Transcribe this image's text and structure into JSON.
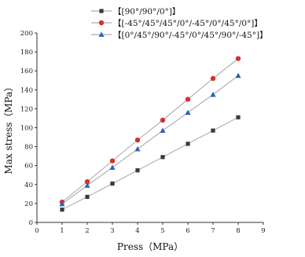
{
  "chart_data": {
    "type": "line",
    "xlabel": "Press（MPa）",
    "ylabel": "Max stress（MPa）",
    "xlim": [
      0,
      9
    ],
    "ylim": [
      0,
      200
    ],
    "xticks": [
      "0",
      "1",
      "2",
      "3",
      "4",
      "5",
      "6",
      "7",
      "8",
      "9"
    ],
    "yticks": [
      "0",
      "20",
      "40",
      "60",
      "80",
      "100",
      "120",
      "140",
      "160",
      "180",
      "200"
    ],
    "grid": false,
    "legend_position": "top",
    "series": [
      {
        "name": "【[90°/90°/0°]】",
        "marker": "square",
        "color": "#3a3a3a",
        "x": [
          1,
          2,
          3,
          4,
          5,
          6,
          7,
          8
        ],
        "values": [
          13.5,
          27,
          41,
          55,
          69,
          83,
          97,
          111
        ]
      },
      {
        "name": "【[-45°/45°/45°/0°/-45°/0°/45°/0°]】",
        "marker": "circle",
        "color": "#d9302c",
        "x": [
          1,
          2,
          3,
          4,
          5,
          6,
          7,
          8
        ],
        "values": [
          21.5,
          43,
          65,
          87,
          108,
          130,
          152,
          173
        ]
      },
      {
        "name": "【[0°/45°/90°/-45°/0°/45°/90°/-45°]】",
        "marker": "triangle",
        "color": "#2d63b8",
        "x": [
          1,
          2,
          3,
          4,
          5,
          6,
          7,
          8
        ],
        "values": [
          19.5,
          39,
          58,
          77.5,
          97,
          116,
          135,
          155
        ]
      }
    ]
  }
}
